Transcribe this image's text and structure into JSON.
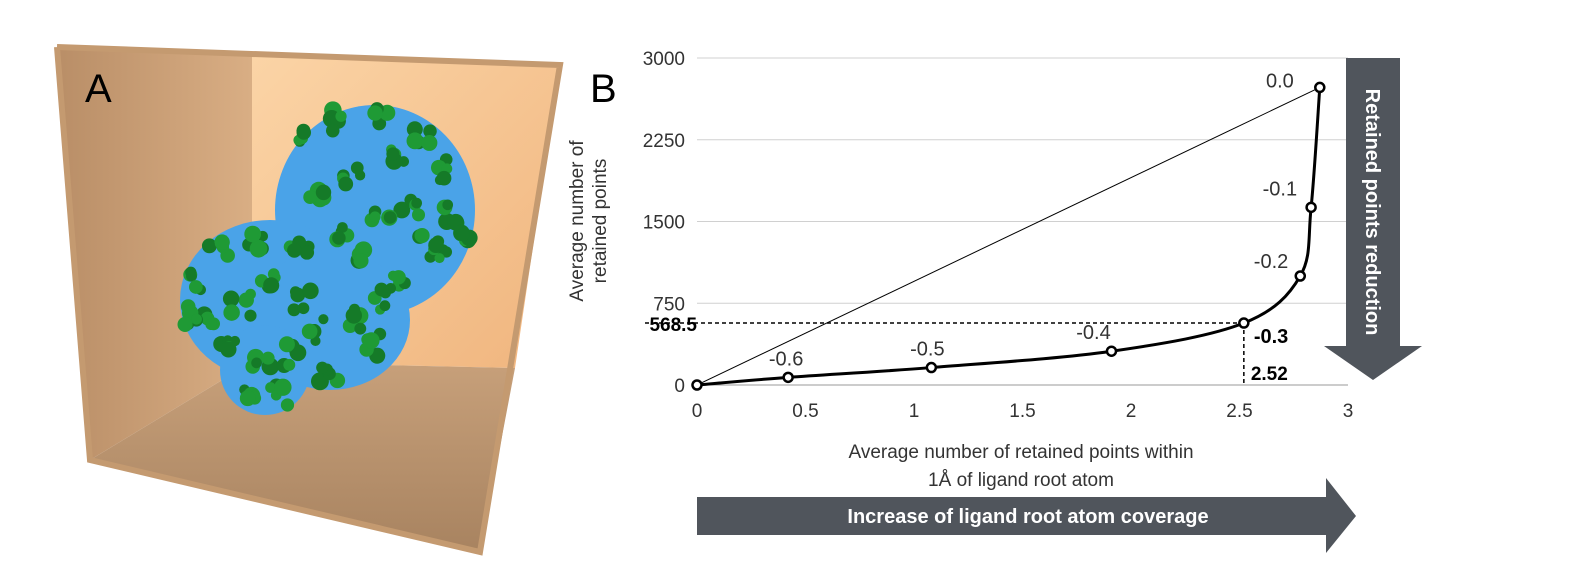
{
  "panel_a": {
    "label": "A",
    "colors": {
      "box_back": "#f7c895",
      "box_left": "#c79b70",
      "box_floor": "#b38e6c",
      "protein_surface": "#4aa3e8",
      "ligand_spheres": "#1f9a35"
    }
  },
  "panel_b": {
    "label": "B",
    "x_arrow_label": "Increase of ligand root atom coverage",
    "y_arrow_label": "Retained points reduction",
    "colors": {
      "arrow": "#50555c",
      "line": "#000000",
      "grid": "#d0d0d0"
    }
  },
  "chart_data": {
    "type": "line",
    "title": "",
    "xlabel": "Average number of retained points within 1Å of ligand root atom",
    "xlabel_lines": [
      "Average number of retained points within",
      "1Å of ligand root atom"
    ],
    "ylabel": "Average number of retained points",
    "ylabel_lines": [
      "Average number of",
      "retained points"
    ],
    "xlim": [
      0,
      3
    ],
    "ylim": [
      0,
      3000
    ],
    "x_ticks": [
      0,
      0.5,
      1,
      1.5,
      2,
      2.5,
      3
    ],
    "x_tick_labels": [
      "0",
      "0.5",
      "1",
      "1.5",
      "2",
      "2.5",
      "3"
    ],
    "y_ticks": [
      0,
      750,
      1500,
      2250,
      3000
    ],
    "y_tick_labels": [
      "0",
      "750",
      "1500",
      "2250",
      "3000"
    ],
    "grid": true,
    "series": [
      {
        "x": [
          0,
          0.42,
          1.08,
          1.91,
          2.52,
          2.78,
          2.83,
          2.87
        ],
        "y": [
          0,
          70,
          160,
          310,
          568.5,
          1000,
          1630,
          2730
        ],
        "labels": [
          "",
          "-0.6",
          "-0.5",
          "-0.4",
          "-0.3",
          "-0.2",
          "-0.1",
          "0.0"
        ]
      }
    ],
    "reference_line": {
      "x": [
        0,
        2.87
      ],
      "y": [
        0,
        2730
      ]
    },
    "highlight": {
      "x": 2.52,
      "y": 568.5,
      "x_label": "2.52",
      "y_label": "568.5",
      "point_label": "-0.3"
    }
  }
}
